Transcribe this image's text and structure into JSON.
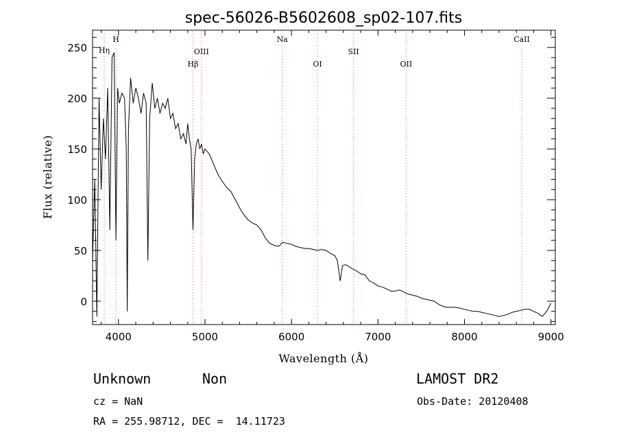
{
  "chart_data": {
    "type": "line",
    "title": "spec-56026-B5602608_sp02-107.fits",
    "xlabel": "Wavelength (Å)",
    "ylabel": "Flux (relative)",
    "xlim": [
      3700,
      9050
    ],
    "ylim": [
      -23,
      267
    ],
    "xticks": [
      4000,
      5000,
      6000,
      7000,
      8000,
      9000
    ],
    "yticks": [
      0,
      50,
      100,
      150,
      200,
      250
    ],
    "grid": false,
    "line_color": "#000000",
    "marker_color": "#e06060",
    "series": [
      {
        "x": [
          3700,
          3725,
          3750,
          3775,
          3800,
          3825,
          3850,
          3875,
          3900,
          3925,
          3950,
          3970,
          3990,
          4010,
          4040,
          4070,
          4090,
          4101,
          4115,
          4140,
          4170,
          4200,
          4230,
          4260,
          4290,
          4320,
          4340,
          4360,
          4390,
          4420,
          4450,
          4480,
          4510,
          4540,
          4570,
          4600,
          4630,
          4660,
          4690,
          4720,
          4750,
          4780,
          4800,
          4820,
          4840,
          4861,
          4880,
          4900,
          4920,
          4940,
          4960,
          4980,
          5000,
          5050,
          5100,
          5150,
          5200,
          5250,
          5300,
          5350,
          5400,
          5450,
          5500,
          5550,
          5600,
          5650,
          5700,
          5750,
          5800,
          5850,
          5900,
          5950,
          6000,
          6050,
          6100,
          6150,
          6200,
          6250,
          6300,
          6350,
          6400,
          6450,
          6500,
          6530,
          6563,
          6590,
          6620,
          6650,
          6700,
          6750,
          6800,
          6850,
          6900,
          6950,
          7000,
          7050,
          7100,
          7150,
          7200,
          7250,
          7300,
          7350,
          7400,
          7450,
          7500,
          7550,
          7600,
          7650,
          7700,
          7750,
          7800,
          7850,
          7900,
          7950,
          8000,
          8050,
          8100,
          8150,
          8200,
          8250,
          8300,
          8350,
          8400,
          8450,
          8500,
          8550,
          8600,
          8650,
          8700,
          8750,
          8800,
          8850,
          8900,
          8950,
          9000
        ],
        "y": [
          40,
          120,
          -15,
          200,
          110,
          180,
          140,
          210,
          70,
          240,
          245,
          60,
          210,
          195,
          205,
          200,
          150,
          -10,
          170,
          220,
          195,
          210,
          200,
          185,
          205,
          195,
          40,
          180,
          215,
          190,
          200,
          185,
          195,
          190,
          200,
          180,
          185,
          170,
          175,
          160,
          165,
          155,
          175,
          160,
          150,
          70,
          140,
          155,
          160,
          150,
          155,
          145,
          150,
          145,
          135,
          125,
          118,
          112,
          108,
          100,
          92,
          85,
          80,
          77,
          75,
          70,
          62,
          57,
          55,
          54,
          58,
          57,
          56,
          54,
          53,
          52,
          52,
          51,
          50,
          51,
          50,
          47,
          45,
          40,
          20,
          35,
          36,
          35,
          32,
          30,
          27,
          26,
          20,
          18,
          15,
          14,
          12,
          10,
          10,
          11,
          9,
          7,
          6,
          5,
          3,
          2,
          1,
          0,
          -3,
          -5,
          -6,
          -6,
          -6,
          -7,
          -8,
          -9,
          -10,
          -10,
          -11,
          -12,
          -13,
          -14,
          -15,
          -14,
          -13,
          -11,
          -10,
          -9,
          -8,
          -8,
          -10,
          -12,
          -15,
          -10,
          -2
        ]
      }
    ],
    "lines": [
      {
        "label": "Hη",
        "x": 3835,
        "row": 2
      },
      {
        "label": "H",
        "x": 3970,
        "row": 1
      },
      {
        "label": "Hβ",
        "x": 4861,
        "row": 4
      },
      {
        "label": "OIII",
        "x": 4959,
        "row": 3
      },
      {
        "label": "Na",
        "x": 5893,
        "row": 1
      },
      {
        "label": "OI",
        "x": 6300,
        "row": 4
      },
      {
        "label": "SII",
        "x": 6717,
        "row": 3
      },
      {
        "label": "OII",
        "x": 7325,
        "row": 4
      },
      {
        "label": "CaII",
        "x": 8662,
        "row": 1
      }
    ]
  },
  "info": {
    "class": "Unknown",
    "subclass": "Non",
    "survey": "LAMOST DR2",
    "cz": "cz = NaN",
    "obs_date": "Obs-Date: 20120408",
    "coords": "RA = 255.98712, DEC =  14.11723"
  }
}
